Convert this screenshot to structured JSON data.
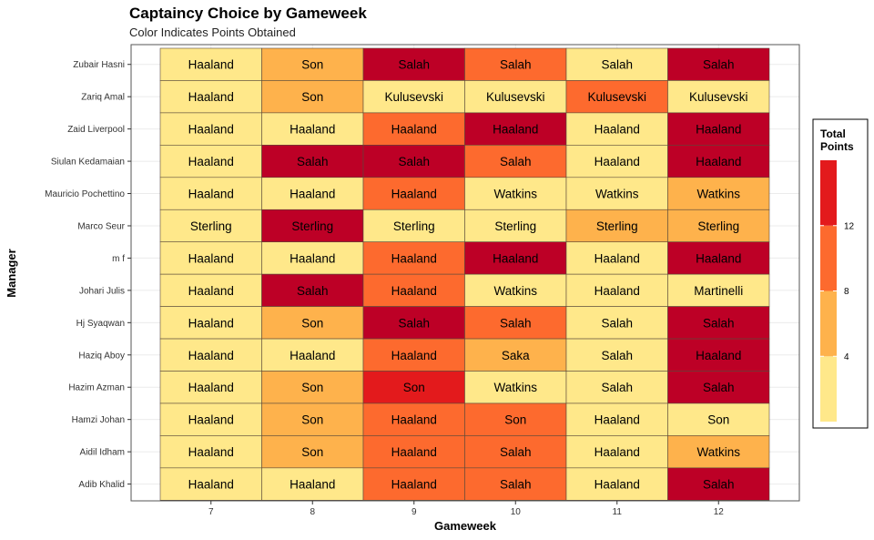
{
  "chart_data": {
    "type": "heatmap",
    "title": "Captaincy Choice by Gameweek",
    "subtitle": "Color Indicates Points Obtained",
    "xlabel": "Gameweek",
    "ylabel": "Manager",
    "x": [
      "7",
      "8",
      "9",
      "10",
      "11",
      "12"
    ],
    "y": [
      "Zubair Hasni",
      "Zariq Amal",
      "Zaid Liverpool",
      "Siulan Kedamaian",
      "Mauricio Pochettino",
      "Marco Seur",
      "m f",
      "Johari Julis",
      "Hj Syaqwan",
      "Haziq Aboy",
      "Hazim Azman",
      "Hamzi Johan",
      "Aidil Idham",
      "Adib Khalid"
    ],
    "captains": [
      [
        "Haaland",
        "Son",
        "Salah",
        "Salah",
        "Salah",
        "Salah"
      ],
      [
        "Haaland",
        "Son",
        "Kulusevski",
        "Kulusevski",
        "Kulusevski",
        "Kulusevski"
      ],
      [
        "Haaland",
        "Haaland",
        "Haaland",
        "Haaland",
        "Haaland",
        "Haaland"
      ],
      [
        "Haaland",
        "Salah",
        "Salah",
        "Salah",
        "Haaland",
        "Haaland"
      ],
      [
        "Haaland",
        "Haaland",
        "Haaland",
        "Watkins",
        "Watkins",
        "Watkins"
      ],
      [
        "Sterling",
        "Sterling",
        "Sterling",
        "Sterling",
        "Sterling",
        "Sterling"
      ],
      [
        "Haaland",
        "Haaland",
        "Haaland",
        "Haaland",
        "Haaland",
        "Haaland"
      ],
      [
        "Haaland",
        "Salah",
        "Haaland",
        "Watkins",
        "Haaland",
        "Martinelli"
      ],
      [
        "Haaland",
        "Son",
        "Salah",
        "Salah",
        "Salah",
        "Salah"
      ],
      [
        "Haaland",
        "Haaland",
        "Haaland",
        "Saka",
        "Salah",
        "Haaland"
      ],
      [
        "Haaland",
        "Son",
        "Son",
        "Watkins",
        "Salah",
        "Salah"
      ],
      [
        "Haaland",
        "Son",
        "Haaland",
        "Son",
        "Haaland",
        "Son"
      ],
      [
        "Haaland",
        "Son",
        "Haaland",
        "Salah",
        "Haaland",
        "Watkins"
      ],
      [
        "Haaland",
        "Haaland",
        "Haaland",
        "Salah",
        "Haaland",
        "Salah"
      ]
    ],
    "points": [
      [
        4,
        6,
        16,
        9,
        4,
        16
      ],
      [
        4,
        6,
        3,
        3,
        9,
        3
      ],
      [
        4,
        4,
        9,
        16,
        3,
        16
      ],
      [
        4,
        16,
        16,
        9,
        3,
        16
      ],
      [
        4,
        4,
        9,
        3,
        4,
        7
      ],
      [
        1,
        16,
        3,
        3,
        7,
        7
      ],
      [
        4,
        4,
        9,
        16,
        3,
        16
      ],
      [
        4,
        16,
        9,
        3,
        3,
        3
      ],
      [
        4,
        6,
        16,
        9,
        4,
        16
      ],
      [
        4,
        4,
        9,
        7,
        4,
        16
      ],
      [
        4,
        6,
        14,
        3,
        4,
        16
      ],
      [
        4,
        6,
        9,
        10,
        3,
        4
      ],
      [
        4,
        6,
        9,
        9,
        3,
        8
      ],
      [
        4,
        4,
        9,
        9,
        3,
        16
      ]
    ],
    "legend": {
      "title_line1": "Total",
      "title_line2": "Points",
      "ticks": [
        "4",
        "8",
        "12"
      ],
      "position": "right"
    },
    "colors": {
      "palette": [
        "#FFE88A",
        "#FEB24C",
        "#FD6A2E",
        "#E31A1C",
        "#BD0026"
      ],
      "legend_bins": [
        "#FFE88A",
        "#FEB24C",
        "#FD6A2E",
        "#E31A1C"
      ],
      "panel_border": "#555555",
      "grid": "#ebebeb"
    }
  }
}
